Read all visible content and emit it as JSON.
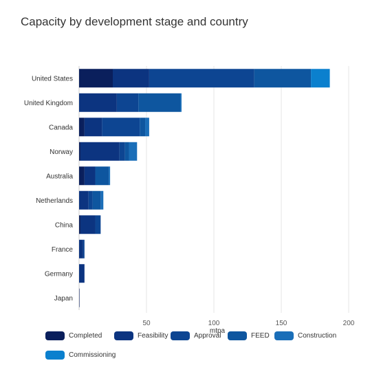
{
  "chart_data": {
    "type": "bar",
    "orientation": "horizontal",
    "stacked": true,
    "title": "Capacity by development stage and country",
    "xlabel": "mtpa",
    "ylabel": "",
    "xlim": [
      0,
      200
    ],
    "xticks": [
      50,
      100,
      150,
      200
    ],
    "grid": true,
    "legend_position": "bottom",
    "categories": [
      "United States",
      "United Kingdom",
      "Canada",
      "Norway",
      "Australia",
      "Netherlands",
      "China",
      "France",
      "Germany",
      "Japan"
    ],
    "series": [
      {
        "name": "Completed",
        "color": "#0a1f5c",
        "values": [
          25,
          0,
          4,
          1,
          4,
          0,
          1,
          0,
          0,
          0.3
        ]
      },
      {
        "name": "Feasibility",
        "color": "#0c3480",
        "values": [
          27,
          28,
          13,
          29,
          8,
          7,
          11,
          3,
          4,
          0
        ]
      },
      {
        "name": "Approval",
        "color": "#0d4592",
        "values": [
          78,
          16,
          28,
          4,
          0,
          3,
          4,
          1,
          0,
          0
        ]
      },
      {
        "name": "FEED",
        "color": "#0e569f",
        "values": [
          42,
          31,
          4,
          3,
          10,
          6,
          0,
          0,
          0,
          0
        ]
      },
      {
        "name": "Construction",
        "color": "#1a6eb8",
        "values": [
          0,
          1,
          3,
          6,
          1,
          2,
          0,
          0,
          0,
          0
        ]
      },
      {
        "name": "Commissioning",
        "color": "#0b80ce",
        "values": [
          14,
          0,
          0,
          0,
          0,
          0,
          0,
          0,
          0,
          0
        ]
      }
    ]
  }
}
